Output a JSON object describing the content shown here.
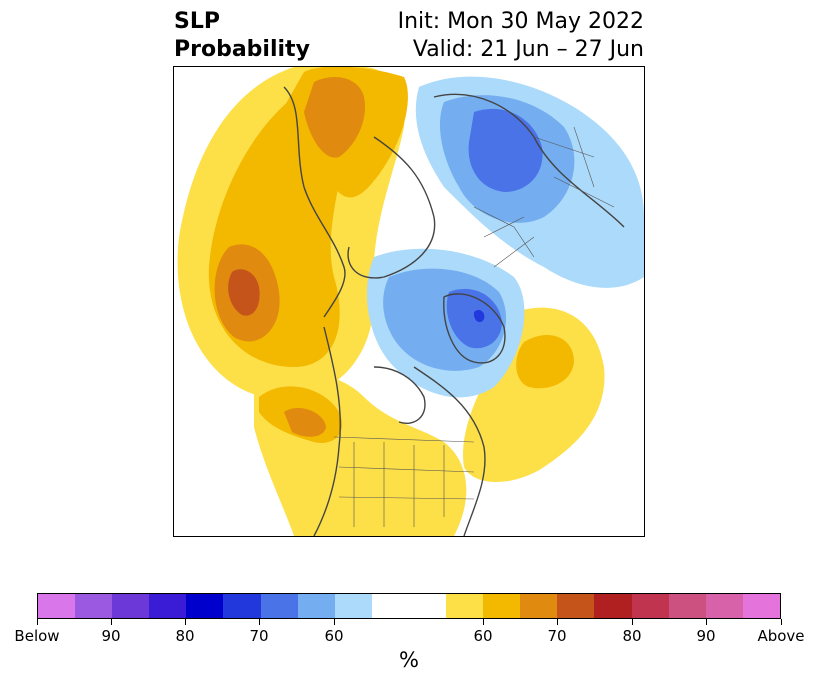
{
  "title": {
    "left_line1": "SLP",
    "left_line2": "Probability",
    "init": "Init: Mon 30 May 2022",
    "valid": "Valid: 21 Jun – 27 Jun"
  },
  "colorbar": {
    "colors": [
      "#d876ea",
      "#9b58e0",
      "#6c38d8",
      "#3a1cd6",
      "#0000cc",
      "#2238dd",
      "#4a73e8",
      "#74aef0",
      "#acdafa",
      "#ffffff",
      "#ffffff",
      "#fddf47",
      "#f3b800",
      "#e08a10",
      "#c4541a",
      "#b02020",
      "#c03450",
      "#cc5080",
      "#d862aa",
      "#e474dc"
    ],
    "tick_labels": [
      "Below",
      "90",
      "80",
      "70",
      "60",
      "60",
      "70",
      "80",
      "90",
      "Above"
    ],
    "unit": "%"
  }
}
